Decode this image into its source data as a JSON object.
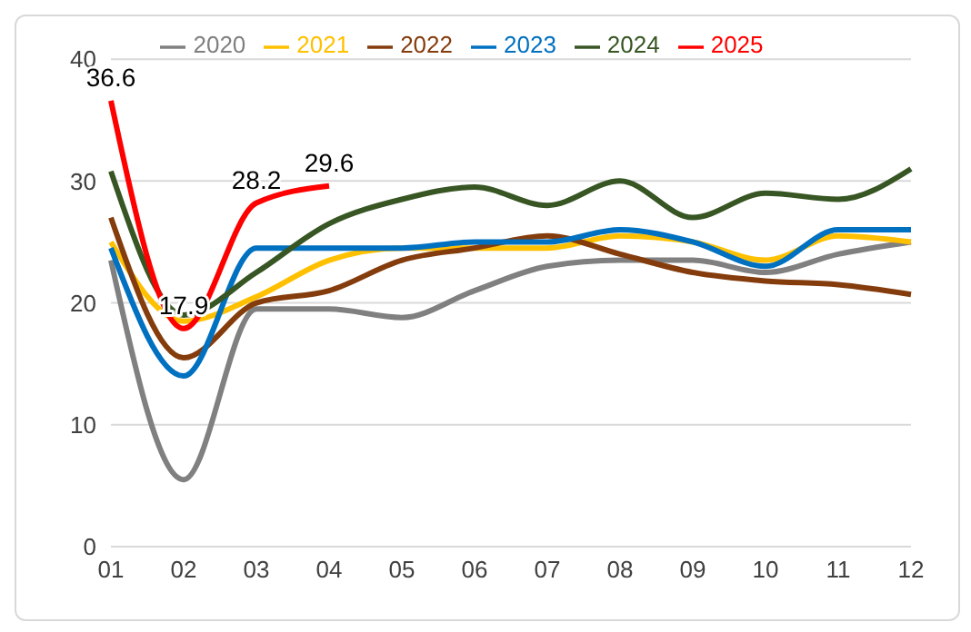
{
  "chart_data": {
    "type": "line",
    "categories": [
      "01",
      "02",
      "03",
      "04",
      "05",
      "06",
      "07",
      "08",
      "09",
      "10",
      "11",
      "12"
    ],
    "series": [
      {
        "name": "2020",
        "color": "#808080",
        "values": [
          23.5,
          5.5,
          19.5,
          19.5,
          18.8,
          21,
          23,
          23.5,
          23.5,
          22.5,
          24,
          25
        ]
      },
      {
        "name": "2021",
        "color": "#ffc000",
        "values": [
          25,
          18.5,
          20.5,
          23.5,
          24.5,
          24.5,
          24.5,
          25.5,
          25,
          23.5,
          25.5,
          25
        ]
      },
      {
        "name": "2022",
        "color": "#843c0c",
        "values": [
          27,
          15.5,
          20,
          21,
          23.5,
          24.5,
          25.5,
          24,
          22.5,
          21.8,
          21.5,
          20.7
        ]
      },
      {
        "name": "2023",
        "color": "#0070c0",
        "values": [
          24.5,
          14,
          24.5,
          24.5,
          24.5,
          25,
          25,
          26,
          25,
          23,
          26,
          26
        ]
      },
      {
        "name": "2024",
        "color": "#375623",
        "values": [
          30.8,
          19,
          22.5,
          26.5,
          28.5,
          29.5,
          28,
          30,
          27,
          29,
          28.5,
          31
        ]
      },
      {
        "name": "2025",
        "color": "#ff0000",
        "values": [
          36.6,
          17.9,
          28.2,
          29.6,
          null,
          null,
          null,
          null,
          null,
          null,
          null,
          null
        ],
        "value_labels": [
          "36.6",
          "17.9",
          "28.2",
          "29.6",
          null,
          null,
          null,
          null,
          null,
          null,
          null,
          null
        ]
      }
    ],
    "ylim": [
      0,
      40
    ],
    "yticks": [
      0,
      10,
      20,
      30,
      40
    ],
    "grid": "y",
    "legend": "top",
    "marker": "none",
    "line_style": "solid"
  }
}
